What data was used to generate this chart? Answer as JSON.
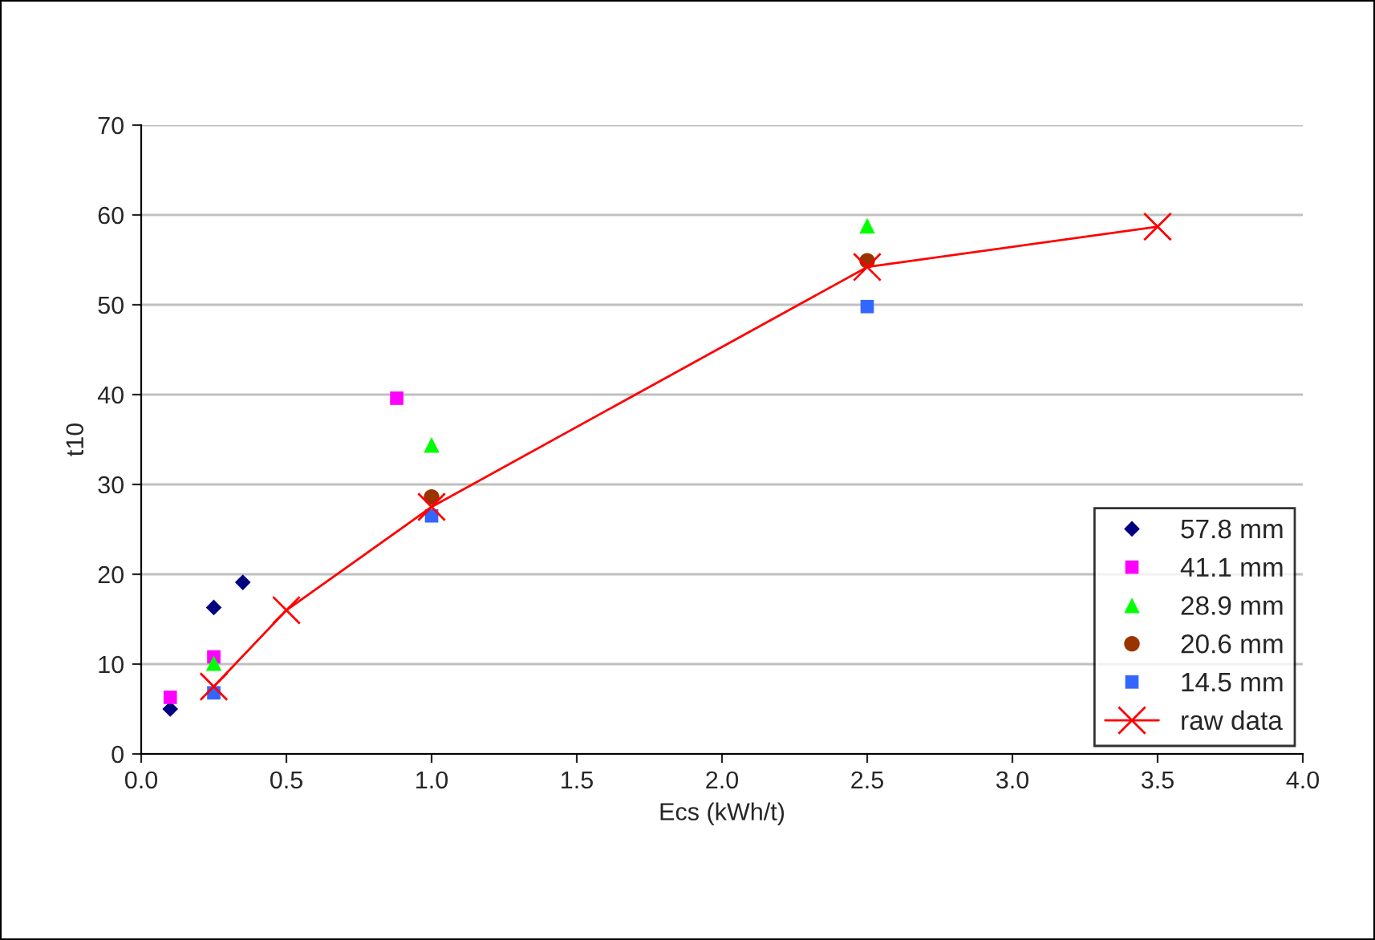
{
  "chart_data": {
    "type": "scatter",
    "xlabel": "Ecs (kWh/t)",
    "ylabel": "t10",
    "xlim": [
      0,
      4
    ],
    "xticks": [
      {
        "value": 0,
        "label": "0.0"
      },
      {
        "value": 0.5,
        "label": "0.5"
      },
      {
        "value": 1,
        "label": "1.0"
      },
      {
        "value": 1.5,
        "label": "1.5"
      },
      {
        "value": 2,
        "label": "2.0"
      },
      {
        "value": 2.5,
        "label": "2.5"
      },
      {
        "value": 3,
        "label": "3.0"
      },
      {
        "value": 3.5,
        "label": "3.5"
      },
      {
        "value": 4,
        "label": "4.0"
      }
    ],
    "ylim": [
      0,
      70
    ],
    "yticks": [
      0,
      10,
      20,
      30,
      40,
      50,
      60,
      70
    ],
    "grid": "y",
    "legend": "bottom right",
    "series": [
      {
        "name": "57.8 mm",
        "color": "#000080",
        "marker": "diamond",
        "x": [
          0.1,
          0.25,
          0.35
        ],
        "values": [
          5.0,
          16.3,
          19.1
        ]
      },
      {
        "name": "41.1 mm",
        "color": "#ff00ff",
        "marker": "square",
        "x": [
          0.1,
          0.25,
          0.88
        ],
        "values": [
          6.3,
          10.8,
          39.6
        ]
      },
      {
        "name": "28.9 mm",
        "color": "#00ff00",
        "marker": "triangle",
        "x": [
          0.25,
          1.0,
          2.5
        ],
        "values": [
          10.1,
          34.4,
          58.8
        ]
      },
      {
        "name": "20.6 mm",
        "color": "#993300",
        "marker": "circle",
        "x": [
          1.0,
          2.5
        ],
        "values": [
          28.6,
          54.9
        ]
      },
      {
        "name": "14.5 mm",
        "color": "#3366ff",
        "marker": "square",
        "x": [
          0.25,
          1.0,
          2.5
        ],
        "values": [
          6.8,
          26.5,
          49.8
        ]
      },
      {
        "name": "raw data",
        "type": "line",
        "color": "#ff0000",
        "marker": "cross",
        "line_style": "solid",
        "x": [
          0.25,
          0.5,
          1.0,
          2.5,
          3.5
        ],
        "values": [
          7.5,
          16.0,
          27.5,
          54.2,
          58.7
        ]
      }
    ]
  }
}
